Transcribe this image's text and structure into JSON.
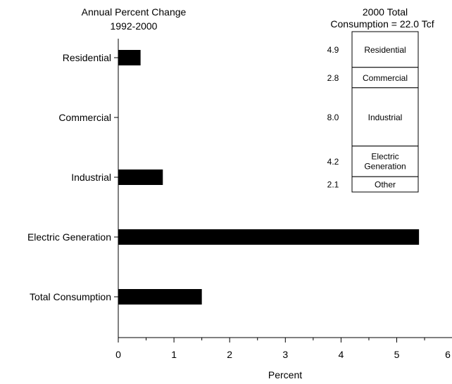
{
  "chart_data": [
    {
      "type": "bar",
      "orientation": "horizontal",
      "title_lines": [
        "Annual Percent Change",
        "1992-2000"
      ],
      "categories": [
        "Residential",
        "Commercial",
        "Industrial",
        "Electric Generation",
        "Total Consumption"
      ],
      "values": [
        0.4,
        0.0,
        0.8,
        5.4,
        1.5
      ],
      "xlabel": "Percent",
      "ylabel": "",
      "xlim": [
        0,
        6
      ],
      "x_ticks": [
        "0",
        "1",
        "2",
        "3",
        "4",
        "5",
        "6"
      ],
      "grid": false,
      "bar_color": "#000000"
    },
    {
      "type": "stacked_bar",
      "title_lines": [
        "2000 Total",
        "Consumption = 22.0 Tcf"
      ],
      "segments": [
        {
          "label": "Residential",
          "value": "4.9"
        },
        {
          "label": "Commercial",
          "value": "2.8"
        },
        {
          "label": "Industrial",
          "value": "8.0"
        },
        {
          "label": "Electric Generation",
          "label_lines": [
            "Electric",
            "Generation"
          ],
          "value": "4.2"
        },
        {
          "label": "Other",
          "value": "2.1"
        }
      ]
    }
  ]
}
